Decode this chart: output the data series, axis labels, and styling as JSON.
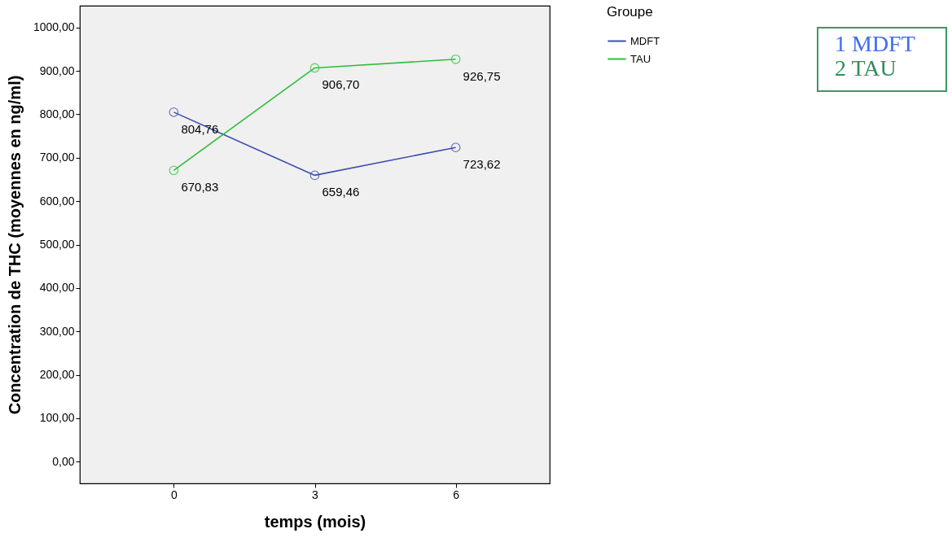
{
  "chart_data": {
    "type": "line",
    "xlabel": "temps (mois)",
    "ylabel": "Concentration de THC (moyennes en ng/ml)",
    "legend_title": "Groupe",
    "x": [
      0,
      3,
      6
    ],
    "xlim": [
      -2,
      8
    ],
    "xticks": [
      0,
      3,
      6
    ],
    "ylim": [
      -50,
      1050
    ],
    "yticks": [
      {
        "value": 0,
        "label": "0,00"
      },
      {
        "value": 100,
        "label": "100,00"
      },
      {
        "value": 200,
        "label": "200,00"
      },
      {
        "value": 300,
        "label": "300,00"
      },
      {
        "value": 400,
        "label": "400,00"
      },
      {
        "value": 500,
        "label": "500,00"
      },
      {
        "value": 600,
        "label": "600,00"
      },
      {
        "value": 700,
        "label": "700,00"
      },
      {
        "value": 800,
        "label": "800,00"
      },
      {
        "value": 900,
        "label": "900,00"
      },
      {
        "value": 1000,
        "label": "1000,00"
      }
    ],
    "series": [
      {
        "name": "MDFT",
        "color": "#3e4faf",
        "values": [
          804.76,
          659.46,
          723.62
        ],
        "value_labels": [
          "804,76",
          "659,46",
          "723,62"
        ]
      },
      {
        "name": "TAU",
        "color": "#2fbf3c",
        "values": [
          670.83,
          906.7,
          926.75
        ],
        "value_labels": [
          "670,83",
          "906,70",
          "926,75"
        ]
      }
    ],
    "marker": "circle",
    "legend": "top right",
    "grid": false,
    "annotations": [
      "1 MDFT",
      "2 TAU"
    ]
  }
}
